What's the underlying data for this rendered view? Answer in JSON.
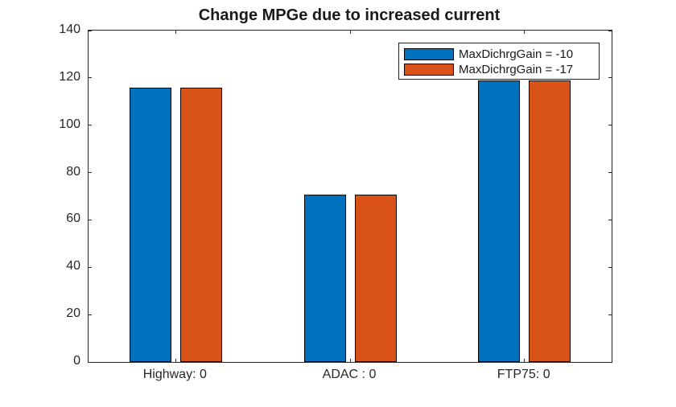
{
  "chart_data": {
    "type": "bar",
    "title": "Change MPGe due to increased current",
    "categories": [
      "Highway: 0",
      "ADAC : 0",
      "FTP75: 0"
    ],
    "series": [
      {
        "name": "MaxDichrgGain = -10",
        "color": "#0072BD",
        "values": [
          116,
          70.7,
          119
        ]
      },
      {
        "name": "MaxDichrgGain = -17",
        "color": "#D95319",
        "values": [
          116,
          70.7,
          119
        ]
      }
    ],
    "xlabel": "",
    "ylabel": "",
    "ylim": [
      0,
      140
    ],
    "yticks": [
      0,
      20,
      40,
      60,
      80,
      100,
      120,
      140
    ],
    "grid": false,
    "legend_position": "top-right",
    "bar_edge_color": "#000000",
    "axis_color": "#262626",
    "background_color": "#FFFFFF"
  }
}
